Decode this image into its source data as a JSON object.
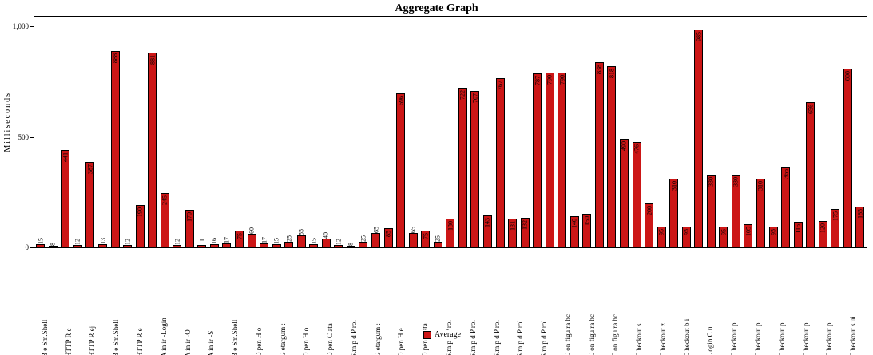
{
  "chart_data": {
    "type": "bar",
    "title": "Aggregate Graph",
    "ylabel": "Milliseconds",
    "xlabel": "",
    "ylim": [
      0,
      1050
    ],
    "grid": true,
    "gridlines": [
      500,
      1000
    ],
    "yticks": [
      {
        "value": 0,
        "label": "0"
      },
      {
        "value": 500,
        "label": "500"
      },
      {
        "value": 1000,
        "label": "1,000"
      }
    ],
    "bar_color": "#cc1616",
    "bar_border_color": "#000000",
    "legend": {
      "label": "Average",
      "color": "#cc1616",
      "position": "bottom-center"
    },
    "values": [
      15,
      8,
      441,
      12,
      387,
      13,
      888,
      12,
      190,
      881,
      245,
      12,
      170,
      11,
      16,
      17,
      75,
      60,
      17,
      15,
      25,
      55,
      15,
      40,
      12,
      8,
      25,
      65,
      85,
      696,
      65,
      75,
      25,
      130,
      722,
      707,
      143,
      767,
      131,
      132,
      787,
      790,
      790,
      140,
      150,
      838,
      818,
      490,
      476,
      200,
      95,
      310,
      95,
      985,
      330,
      95,
      330,
      105,
      310,
      95,
      365,
      115,
      656,
      120,
      175,
      808,
      185
    ],
    "xticklabels": [
      "B e Sm.Shell",
      "HTTP R e",
      "HTTP R ej",
      "B e Sm.Shell",
      "HTTP R e",
      "A in ir -Login",
      "A in ir -O",
      "A in ir -S",
      "B e Sm.Shell",
      "O pen H o",
      "G etargum :",
      "O pen H o",
      "O pen C ata",
      "S.m.p d P rol",
      "G etargum :",
      "O pen H e",
      "O pen C ata",
      "S.m.p d P rol",
      "S.m.p d P rol",
      "S.m.p d P rol",
      "S.m.p d P rol",
      "S.m.p d P rol",
      "C on figu ra hc",
      "C on figu ra hc",
      "C on figu ra hc",
      "C heckout s",
      "C heckout z",
      "C heckout b i",
      "L ogin C u",
      "C heckout p",
      "C heckout p",
      "C heckout p",
      "C heckout p",
      "C heckout p",
      "C heckout s ui"
    ]
  }
}
